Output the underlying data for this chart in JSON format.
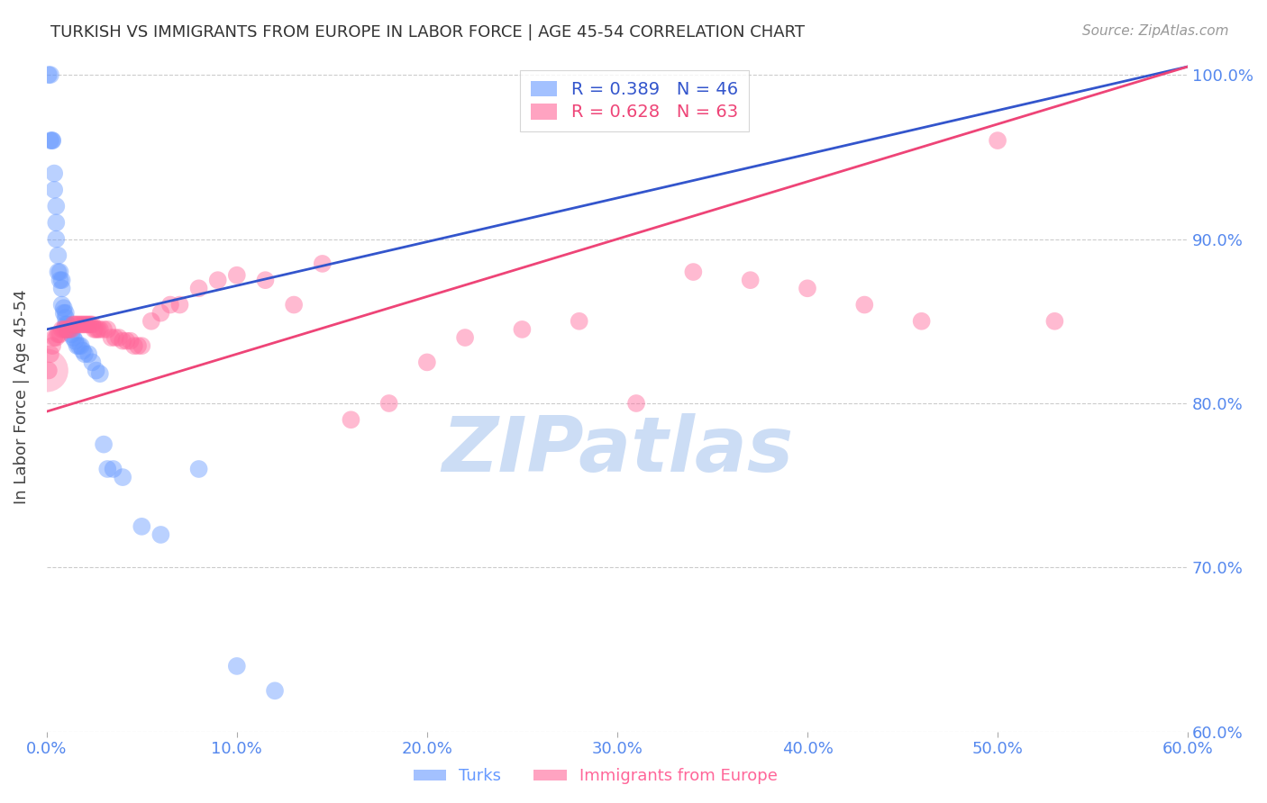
{
  "title": "TURKISH VS IMMIGRANTS FROM EUROPE IN LABOR FORCE | AGE 45-54 CORRELATION CHART",
  "source": "Source: ZipAtlas.com",
  "ylabel": "In Labor Force | Age 45-54",
  "x_min": 0.0,
  "x_max": 0.6,
  "y_min": 0.6,
  "y_max": 1.008,
  "y_ticks": [
    0.6,
    0.7,
    0.8,
    0.9,
    1.0
  ],
  "x_ticks": [
    0.0,
    0.1,
    0.2,
    0.3,
    0.4,
    0.5,
    0.6
  ],
  "turks_color": "#6699ff",
  "europe_color": "#ff6699",
  "line_blue": "#3355cc",
  "line_pink": "#ee4477",
  "watermark_color": "#ccddf5",
  "background_color": "#ffffff",
  "grid_color": "#cccccc",
  "title_color": "#333333",
  "axis_color": "#5588ee",
  "ylabel_color": "#444444",
  "blue_line_x0": 0.0,
  "blue_line_y0": 0.845,
  "blue_line_x1": 0.6,
  "blue_line_y1": 1.005,
  "pink_line_x0": 0.0,
  "pink_line_y0": 0.795,
  "pink_line_x1": 0.6,
  "pink_line_y1": 1.005,
  "turks_x": [
    0.001,
    0.002,
    0.002,
    0.003,
    0.003,
    0.004,
    0.004,
    0.005,
    0.005,
    0.005,
    0.006,
    0.006,
    0.007,
    0.007,
    0.008,
    0.008,
    0.008,
    0.009,
    0.009,
    0.01,
    0.01,
    0.01,
    0.011,
    0.011,
    0.012,
    0.013,
    0.014,
    0.015,
    0.016,
    0.017,
    0.018,
    0.019,
    0.02,
    0.022,
    0.024,
    0.026,
    0.028,
    0.03,
    0.032,
    0.035,
    0.04,
    0.05,
    0.06,
    0.08,
    0.1,
    0.12
  ],
  "turks_y": [
    1.0,
    1.0,
    0.96,
    0.96,
    0.96,
    0.94,
    0.93,
    0.92,
    0.91,
    0.9,
    0.89,
    0.88,
    0.88,
    0.875,
    0.875,
    0.87,
    0.86,
    0.858,
    0.855,
    0.855,
    0.852,
    0.848,
    0.848,
    0.845,
    0.845,
    0.842,
    0.84,
    0.838,
    0.835,
    0.835,
    0.835,
    0.832,
    0.83,
    0.83,
    0.825,
    0.82,
    0.818,
    0.775,
    0.76,
    0.76,
    0.755,
    0.725,
    0.72,
    0.76,
    0.64,
    0.625
  ],
  "europe_x": [
    0.001,
    0.002,
    0.003,
    0.004,
    0.005,
    0.006,
    0.007,
    0.008,
    0.009,
    0.01,
    0.011,
    0.012,
    0.013,
    0.014,
    0.015,
    0.016,
    0.017,
    0.018,
    0.019,
    0.02,
    0.021,
    0.022,
    0.023,
    0.024,
    0.025,
    0.026,
    0.027,
    0.028,
    0.03,
    0.032,
    0.034,
    0.036,
    0.038,
    0.04,
    0.042,
    0.044,
    0.046,
    0.048,
    0.05,
    0.055,
    0.06,
    0.065,
    0.07,
    0.08,
    0.09,
    0.1,
    0.115,
    0.13,
    0.145,
    0.16,
    0.18,
    0.2,
    0.22,
    0.25,
    0.28,
    0.31,
    0.34,
    0.37,
    0.4,
    0.43,
    0.46,
    0.5,
    0.53
  ],
  "europe_y": [
    0.82,
    0.83,
    0.835,
    0.84,
    0.84,
    0.842,
    0.842,
    0.845,
    0.845,
    0.845,
    0.845,
    0.845,
    0.845,
    0.848,
    0.848,
    0.848,
    0.848,
    0.848,
    0.848,
    0.848,
    0.848,
    0.848,
    0.848,
    0.848,
    0.845,
    0.845,
    0.845,
    0.845,
    0.845,
    0.845,
    0.84,
    0.84,
    0.84,
    0.838,
    0.838,
    0.838,
    0.835,
    0.835,
    0.835,
    0.85,
    0.855,
    0.86,
    0.86,
    0.87,
    0.875,
    0.878,
    0.875,
    0.86,
    0.885,
    0.79,
    0.8,
    0.825,
    0.84,
    0.845,
    0.85,
    0.8,
    0.88,
    0.875,
    0.87,
    0.86,
    0.85,
    0.96,
    0.85
  ]
}
